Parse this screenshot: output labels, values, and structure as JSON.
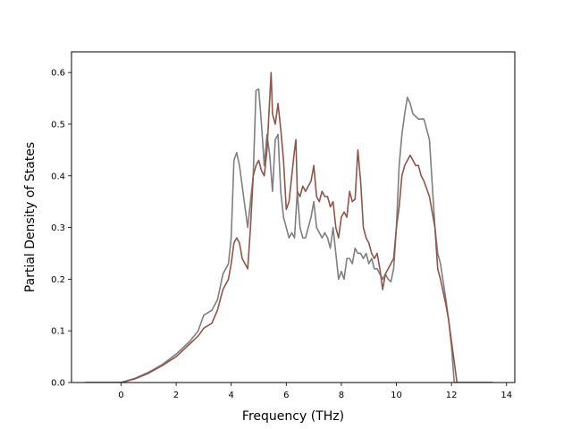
{
  "chart_data": {
    "type": "line",
    "title": "",
    "xlabel": "Frequency (THz)",
    "ylabel": "Partial Density of States",
    "xlim": [
      -1.8,
      14.3
    ],
    "ylim": [
      0,
      0.64
    ],
    "xticks": [
      0,
      2,
      4,
      6,
      8,
      10,
      12,
      14
    ],
    "yticks": [
      0.0,
      0.1,
      0.2,
      0.3,
      0.4,
      0.5,
      0.6
    ],
    "ytick_labels": [
      "0.0",
      "0.1",
      "0.2",
      "0.3",
      "0.4",
      "0.5",
      "0.6"
    ],
    "grid": false,
    "legend": "none",
    "series": [
      {
        "color": "#7f7f7f",
        "x": [
          -1.3,
          0.0,
          0.5,
          1.0,
          1.5,
          2.0,
          2.5,
          2.8,
          3.0,
          3.3,
          3.5,
          3.7,
          3.9,
          4.0,
          4.1,
          4.2,
          4.3,
          4.4,
          4.6,
          4.8,
          4.9,
          5.0,
          5.1,
          5.2,
          5.3,
          5.4,
          5.5,
          5.6,
          5.7,
          5.8,
          5.9,
          6.0,
          6.1,
          6.2,
          6.3,
          6.4,
          6.5,
          6.6,
          6.7,
          6.8,
          6.9,
          7.0,
          7.1,
          7.2,
          7.3,
          7.4,
          7.5,
          7.6,
          7.7,
          7.8,
          7.9,
          8.0,
          8.1,
          8.2,
          8.3,
          8.4,
          8.5,
          8.6,
          8.7,
          8.8,
          8.9,
          9.0,
          9.1,
          9.2,
          9.3,
          9.4,
          9.5,
          9.6,
          9.7,
          9.8,
          9.9,
          10.0,
          10.1,
          10.2,
          10.3,
          10.4,
          10.5,
          10.6,
          10.7,
          10.8,
          10.9,
          11.0,
          11.2,
          11.4,
          11.5,
          11.6,
          11.8,
          11.9,
          12.0,
          12.1,
          12.2,
          12.3,
          12.5,
          13.5
        ],
        "y": [
          0.0,
          0.0,
          0.008,
          0.02,
          0.035,
          0.055,
          0.08,
          0.1,
          0.13,
          0.14,
          0.16,
          0.21,
          0.23,
          0.28,
          0.43,
          0.445,
          0.42,
          0.38,
          0.3,
          0.4,
          0.565,
          0.568,
          0.5,
          0.42,
          0.48,
          0.44,
          0.37,
          0.47,
          0.48,
          0.37,
          0.32,
          0.3,
          0.28,
          0.29,
          0.28,
          0.37,
          0.3,
          0.28,
          0.28,
          0.3,
          0.32,
          0.35,
          0.3,
          0.29,
          0.28,
          0.29,
          0.28,
          0.26,
          0.3,
          0.25,
          0.2,
          0.215,
          0.2,
          0.24,
          0.24,
          0.23,
          0.26,
          0.25,
          0.25,
          0.24,
          0.25,
          0.23,
          0.24,
          0.22,
          0.22,
          0.21,
          0.2,
          0.21,
          0.2,
          0.195,
          0.22,
          0.3,
          0.42,
          0.48,
          0.52,
          0.552,
          0.54,
          0.52,
          0.515,
          0.51,
          0.51,
          0.51,
          0.47,
          0.3,
          0.25,
          0.23,
          0.16,
          0.12,
          0.07,
          0.0,
          0.0,
          0.0,
          0.0,
          0.0
        ]
      },
      {
        "color": "#8c564b",
        "x": [
          -1.3,
          0.0,
          0.5,
          1.0,
          1.5,
          2.0,
          2.5,
          2.8,
          3.0,
          3.3,
          3.5,
          3.7,
          3.9,
          4.0,
          4.1,
          4.2,
          4.3,
          4.4,
          4.6,
          4.7,
          4.8,
          4.9,
          5.0,
          5.1,
          5.2,
          5.3,
          5.4,
          5.45,
          5.5,
          5.6,
          5.7,
          5.8,
          5.9,
          6.0,
          6.1,
          6.2,
          6.3,
          6.35,
          6.4,
          6.5,
          6.6,
          6.7,
          6.8,
          6.9,
          7.0,
          7.1,
          7.2,
          7.3,
          7.4,
          7.5,
          7.6,
          7.7,
          7.8,
          7.9,
          8.0,
          8.1,
          8.2,
          8.3,
          8.4,
          8.5,
          8.6,
          8.7,
          8.8,
          8.9,
          9.0,
          9.1,
          9.2,
          9.3,
          9.4,
          9.5,
          9.6,
          9.7,
          9.8,
          9.9,
          10.0,
          10.1,
          10.2,
          10.3,
          10.4,
          10.5,
          10.6,
          10.7,
          10.8,
          10.9,
          11.0,
          11.2,
          11.4,
          11.5,
          11.6,
          11.8,
          11.9,
          12.0,
          12.1,
          12.2,
          12.3,
          12.5,
          13.5
        ],
        "y": [
          0.0,
          0.0,
          0.007,
          0.018,
          0.033,
          0.05,
          0.075,
          0.09,
          0.105,
          0.115,
          0.14,
          0.18,
          0.2,
          0.23,
          0.27,
          0.28,
          0.27,
          0.24,
          0.22,
          0.3,
          0.4,
          0.42,
          0.43,
          0.41,
          0.4,
          0.45,
          0.55,
          0.6,
          0.52,
          0.5,
          0.54,
          0.49,
          0.43,
          0.335,
          0.35,
          0.4,
          0.45,
          0.47,
          0.37,
          0.36,
          0.38,
          0.37,
          0.38,
          0.39,
          0.42,
          0.36,
          0.35,
          0.37,
          0.36,
          0.36,
          0.34,
          0.35,
          0.3,
          0.28,
          0.32,
          0.33,
          0.32,
          0.37,
          0.35,
          0.355,
          0.45,
          0.39,
          0.3,
          0.28,
          0.27,
          0.25,
          0.24,
          0.25,
          0.22,
          0.18,
          0.21,
          0.22,
          0.23,
          0.24,
          0.3,
          0.34,
          0.4,
          0.42,
          0.43,
          0.44,
          0.43,
          0.42,
          0.42,
          0.4,
          0.39,
          0.36,
          0.3,
          0.22,
          0.2,
          0.15,
          0.12,
          0.08,
          0.04,
          0.0,
          0.0,
          0.0,
          0.0
        ]
      }
    ]
  }
}
